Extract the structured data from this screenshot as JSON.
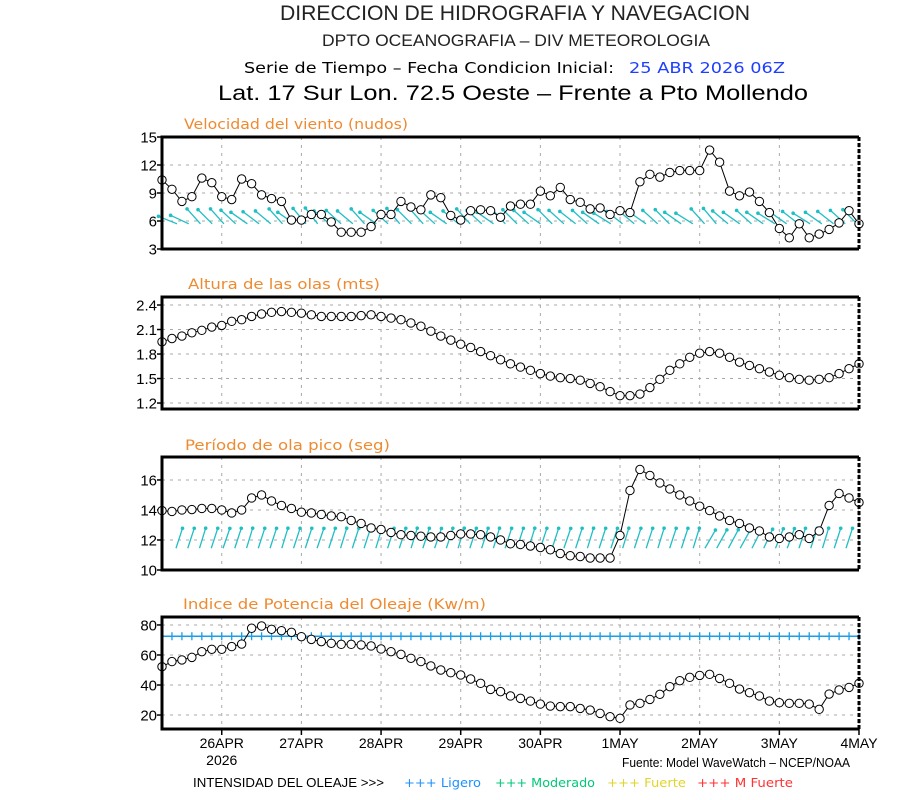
{
  "header": {
    "org": "DIRECCION DE HIDROGRAFIA Y NAVEGACION",
    "dept": "DPTO OCEANOGRAFIA – DIV METEOROLOGIA",
    "series_label": "Serie de Tiempo – Fecha Condicion Inicial:",
    "init_date": "25 ABR 2026 06Z",
    "location": "Lat. 17 Sur  Lon. 72.5 Oeste – Frente a Pto Mollendo"
  },
  "footer": {
    "source": "Fuente: Model WaveWatch – NCEP/NOAA",
    "intensity_label": "INTENSIDAD DEL OLEAJE >>>",
    "legend": [
      {
        "label": "+++ Ligero",
        "color": "#1e90ff"
      },
      {
        "label": "+++ Moderado",
        "color": "#00c878"
      },
      {
        "label": "+++ Fuerte",
        "color": "#e2d42a"
      },
      {
        "label": "+++ M Fuerte",
        "color": "#ff3333"
      }
    ]
  },
  "colors": {
    "panel_title": "#ee8a30",
    "init_date": "#1f3fff",
    "direction_arrows": "#1fbfc4",
    "threshold_line": "#1a9ee8"
  },
  "chart_data": [
    {
      "id": "wind",
      "type": "line",
      "title": "Velocidad del viento (nudos)",
      "x_start": "25 ABR 2026 06Z",
      "step_hours": 3,
      "xtick_indices": [
        6,
        14,
        22,
        30,
        38,
        46,
        54,
        62,
        70
      ],
      "xtick_labels": [],
      "ylim": [
        3,
        15
      ],
      "yticks": [
        3,
        6,
        9,
        12,
        15
      ],
      "ytick_labels": [
        "3",
        "6",
        "9",
        "12",
        "15"
      ],
      "grid": true,
      "values": [
        10.4,
        9.4,
        8.1,
        8.6,
        10.6,
        10.1,
        8.6,
        8.3,
        10.5,
        10.0,
        8.8,
        8.4,
        8.1,
        6.1,
        6.1,
        6.7,
        6.7,
        5.9,
        4.8,
        4.8,
        4.8,
        5.4,
        6.7,
        6.7,
        8.1,
        7.5,
        7.2,
        8.8,
        8.5,
        6.6,
        6.1,
        7.1,
        7.2,
        7.1,
        6.4,
        7.6,
        7.8,
        7.8,
        9.2,
        8.7,
        9.6,
        8.3,
        8.0,
        7.3,
        7.4,
        6.7,
        7.1,
        6.9,
        10.2,
        11.0,
        10.7,
        11.2,
        11.4,
        11.4,
        11.4,
        13.6,
        12.3,
        9.2,
        8.7,
        9.1,
        8.1,
        6.9,
        5.2,
        4.2,
        5.7,
        4.2,
        4.6,
        5.1,
        5.8,
        7.1,
        5.7
      ],
      "arrows": {
        "meaning": "wind direction (toward, degrees)",
        "directions_deg": [
          292,
          295,
          318,
          315,
          318,
          313,
          305,
          307,
          310,
          318,
          305,
          320,
          322,
          310,
          312,
          310,
          318,
          305,
          312,
          320,
          315,
          318,
          312,
          305,
          310,
          318,
          312,
          305,
          318,
          315,
          312,
          305,
          315,
          312,
          308,
          312,
          305,
          302,
          308,
          310,
          305,
          312,
          315,
          305,
          302,
          318,
          320,
          310,
          305,
          312,
          305,
          302,
          305,
          308,
          302,
          305,
          308,
          312,
          315
        ]
      }
    },
    {
      "id": "wave-height",
      "type": "line",
      "title": "Altura de las olas (mts)",
      "x_start": "25 ABR 2026 06Z",
      "step_hours": 3,
      "xtick_indices": [
        6,
        14,
        22,
        30,
        38,
        46,
        54,
        62,
        70
      ],
      "xtick_labels": [],
      "ylim": [
        1.127,
        2.498
      ],
      "yticks": [
        1.2,
        1.5,
        1.8,
        2.1,
        2.4
      ],
      "ytick_labels": [
        "1.2",
        "1.5",
        "1.8",
        "2.1",
        "2.4"
      ],
      "grid": true,
      "values": [
        1.95,
        1.99,
        2.02,
        2.06,
        2.09,
        2.13,
        2.15,
        2.2,
        2.22,
        2.26,
        2.29,
        2.31,
        2.32,
        2.31,
        2.3,
        2.28,
        2.26,
        2.26,
        2.26,
        2.26,
        2.27,
        2.28,
        2.26,
        2.24,
        2.22,
        2.18,
        2.14,
        2.08,
        2.02,
        1.97,
        1.92,
        1.88,
        1.83,
        1.78,
        1.73,
        1.68,
        1.64,
        1.6,
        1.56,
        1.53,
        1.51,
        1.5,
        1.48,
        1.44,
        1.4,
        1.34,
        1.29,
        1.29,
        1.31,
        1.39,
        1.49,
        1.6,
        1.68,
        1.76,
        1.81,
        1.83,
        1.81,
        1.76,
        1.7,
        1.66,
        1.62,
        1.58,
        1.54,
        1.51,
        1.49,
        1.48,
        1.49,
        1.51,
        1.56,
        1.62,
        1.68
      ]
    },
    {
      "id": "peak-period",
      "type": "line",
      "title": "Período de ola pico (seg)",
      "x_start": "25 ABR 2026 06Z",
      "step_hours": 3,
      "xtick_indices": [
        6,
        14,
        22,
        30,
        38,
        46,
        54,
        62,
        70
      ],
      "xtick_labels": [],
      "ylim": [
        10,
        17.53
      ],
      "yticks": [
        10,
        12,
        14,
        16
      ],
      "ytick_labels": [
        "10",
        "12",
        "14",
        "16"
      ],
      "grid": true,
      "values": [
        13.96,
        13.9,
        14.0,
        14.03,
        14.1,
        14.1,
        14.0,
        13.8,
        14.0,
        14.8,
        15.0,
        14.6,
        14.3,
        14.1,
        13.85,
        13.8,
        13.7,
        13.6,
        13.55,
        13.3,
        13.1,
        12.8,
        12.7,
        12.5,
        12.35,
        12.3,
        12.25,
        12.2,
        12.2,
        12.3,
        12.4,
        12.4,
        12.35,
        12.2,
        12.0,
        11.75,
        11.7,
        11.6,
        11.5,
        11.35,
        11.1,
        10.95,
        10.9,
        10.8,
        10.8,
        10.8,
        12.3,
        15.3,
        16.7,
        16.3,
        15.8,
        15.4,
        15.0,
        14.6,
        14.25,
        13.96,
        13.6,
        13.3,
        13.1,
        12.8,
        12.6,
        12.2,
        12.1,
        12.2,
        12.35,
        12.1,
        12.6,
        14.3,
        15.1,
        14.8,
        14.5
      ],
      "arrows": {
        "meaning": "wave direction (toward, degrees)",
        "directions_deg": [
          18,
          18,
          17,
          18,
          19,
          18,
          17,
          18,
          18,
          17,
          18,
          18,
          19,
          18,
          17,
          18,
          18,
          17,
          18,
          18,
          17,
          18,
          19,
          18,
          17,
          18,
          18,
          17,
          18,
          18,
          17,
          18,
          18,
          19,
          18,
          17,
          18,
          18,
          17,
          18,
          18,
          17,
          18,
          18,
          17,
          30,
          29,
          28,
          29,
          27,
          25,
          22,
          20,
          18,
          18,
          17,
          18,
          18
        ]
      }
    },
    {
      "id": "wave-power",
      "type": "line",
      "title": "Indice de Potencia del Oleaje (Kw/m)",
      "x_start": "25 ABR 2026 06Z",
      "step_hours": 3,
      "xtick_indices": [
        6,
        14,
        22,
        30,
        38,
        46,
        54,
        62,
        70
      ],
      "xtick_labels": [
        "26APR",
        "27APR",
        "28APR",
        "29APR",
        "30APR",
        "1MAY",
        "2MAY",
        "3MAY",
        "4MAY"
      ],
      "xtick_sublabel": "2026",
      "ylim": [
        10.7,
        85.3
      ],
      "yticks": [
        20,
        40,
        60,
        80
      ],
      "ytick_labels": [
        "20",
        "40",
        "60",
        "80"
      ],
      "grid": true,
      "threshold": {
        "label": "Ligero",
        "value": 72.5
      },
      "values": [
        52.2,
        55.6,
        56.7,
        58.4,
        62.2,
        63.8,
        63.8,
        65.6,
        67.3,
        77.8,
        79.3,
        77.1,
        76.2,
        75.1,
        72.2,
        70.4,
        68.9,
        67.8,
        67.1,
        67.1,
        66.7,
        66.0,
        64.0,
        62.2,
        60.4,
        57.8,
        55.6,
        52.7,
        50.0,
        48.2,
        46.7,
        44.0,
        41.1,
        37.1,
        35.6,
        32.7,
        31.1,
        29.3,
        27.3,
        26.0,
        25.6,
        25.6,
        24.4,
        23.3,
        21.1,
        18.9,
        17.8,
        26.7,
        27.8,
        30.4,
        33.8,
        38.9,
        42.9,
        45.1,
        46.4,
        47.1,
        44.4,
        41.1,
        37.3,
        34.9,
        32.7,
        29.3,
        28.2,
        27.8,
        27.8,
        27.3,
        23.8,
        34.0,
        36.7,
        38.4,
        41.1
      ]
    }
  ]
}
